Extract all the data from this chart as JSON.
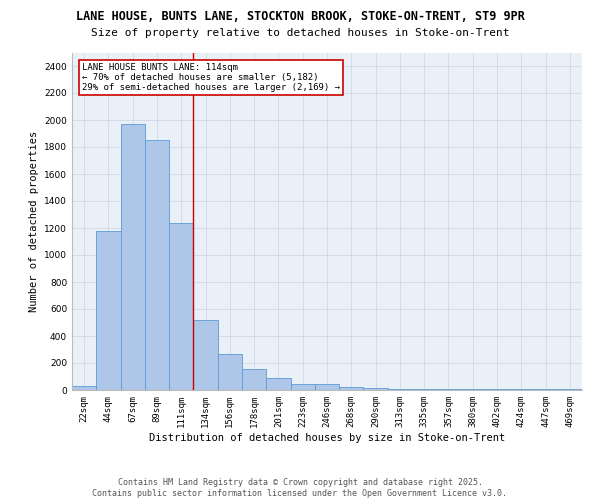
{
  "title_line1": "LANE HOUSE, BUNTS LANE, STOCKTON BROOK, STOKE-ON-TRENT, ST9 9PR",
  "title_line2": "Size of property relative to detached houses in Stoke-on-Trent",
  "xlabel": "Distribution of detached houses by size in Stoke-on-Trent",
  "ylabel": "Number of detached properties",
  "categories": [
    "22sqm",
    "44sqm",
    "67sqm",
    "89sqm",
    "111sqm",
    "134sqm",
    "156sqm",
    "178sqm",
    "201sqm",
    "223sqm",
    "246sqm",
    "268sqm",
    "290sqm",
    "313sqm",
    "335sqm",
    "357sqm",
    "380sqm",
    "402sqm",
    "424sqm",
    "447sqm",
    "469sqm"
  ],
  "values": [
    30,
    1175,
    1970,
    1855,
    1240,
    515,
    270,
    155,
    90,
    48,
    42,
    25,
    18,
    10,
    10,
    5,
    5,
    5,
    5,
    5,
    5
  ],
  "bar_color": "#aec6e8",
  "bar_edge_color": "#5b9bd5",
  "annotation_text": "LANE HOUSE BUNTS LANE: 114sqm\n← 70% of detached houses are smaller (5,182)\n29% of semi-detached houses are larger (2,169) →",
  "annotation_box_color": "#ffffff",
  "annotation_box_edge_color": "#cc0000",
  "vline_color": "#cc0000",
  "vline_x": 4.5,
  "ylim": [
    0,
    2500
  ],
  "yticks": [
    0,
    200,
    400,
    600,
    800,
    1000,
    1200,
    1400,
    1600,
    1800,
    2000,
    2200,
    2400
  ],
  "grid_color": "#d0d8e8",
  "background_color": "#eaf0f8",
  "footer_line1": "Contains HM Land Registry data © Crown copyright and database right 2025.",
  "footer_line2": "Contains public sector information licensed under the Open Government Licence v3.0.",
  "title_fontsize": 8.5,
  "subtitle_fontsize": 8,
  "axis_label_fontsize": 7.5,
  "tick_fontsize": 6.5,
  "annotation_fontsize": 6.5,
  "footer_fontsize": 6
}
